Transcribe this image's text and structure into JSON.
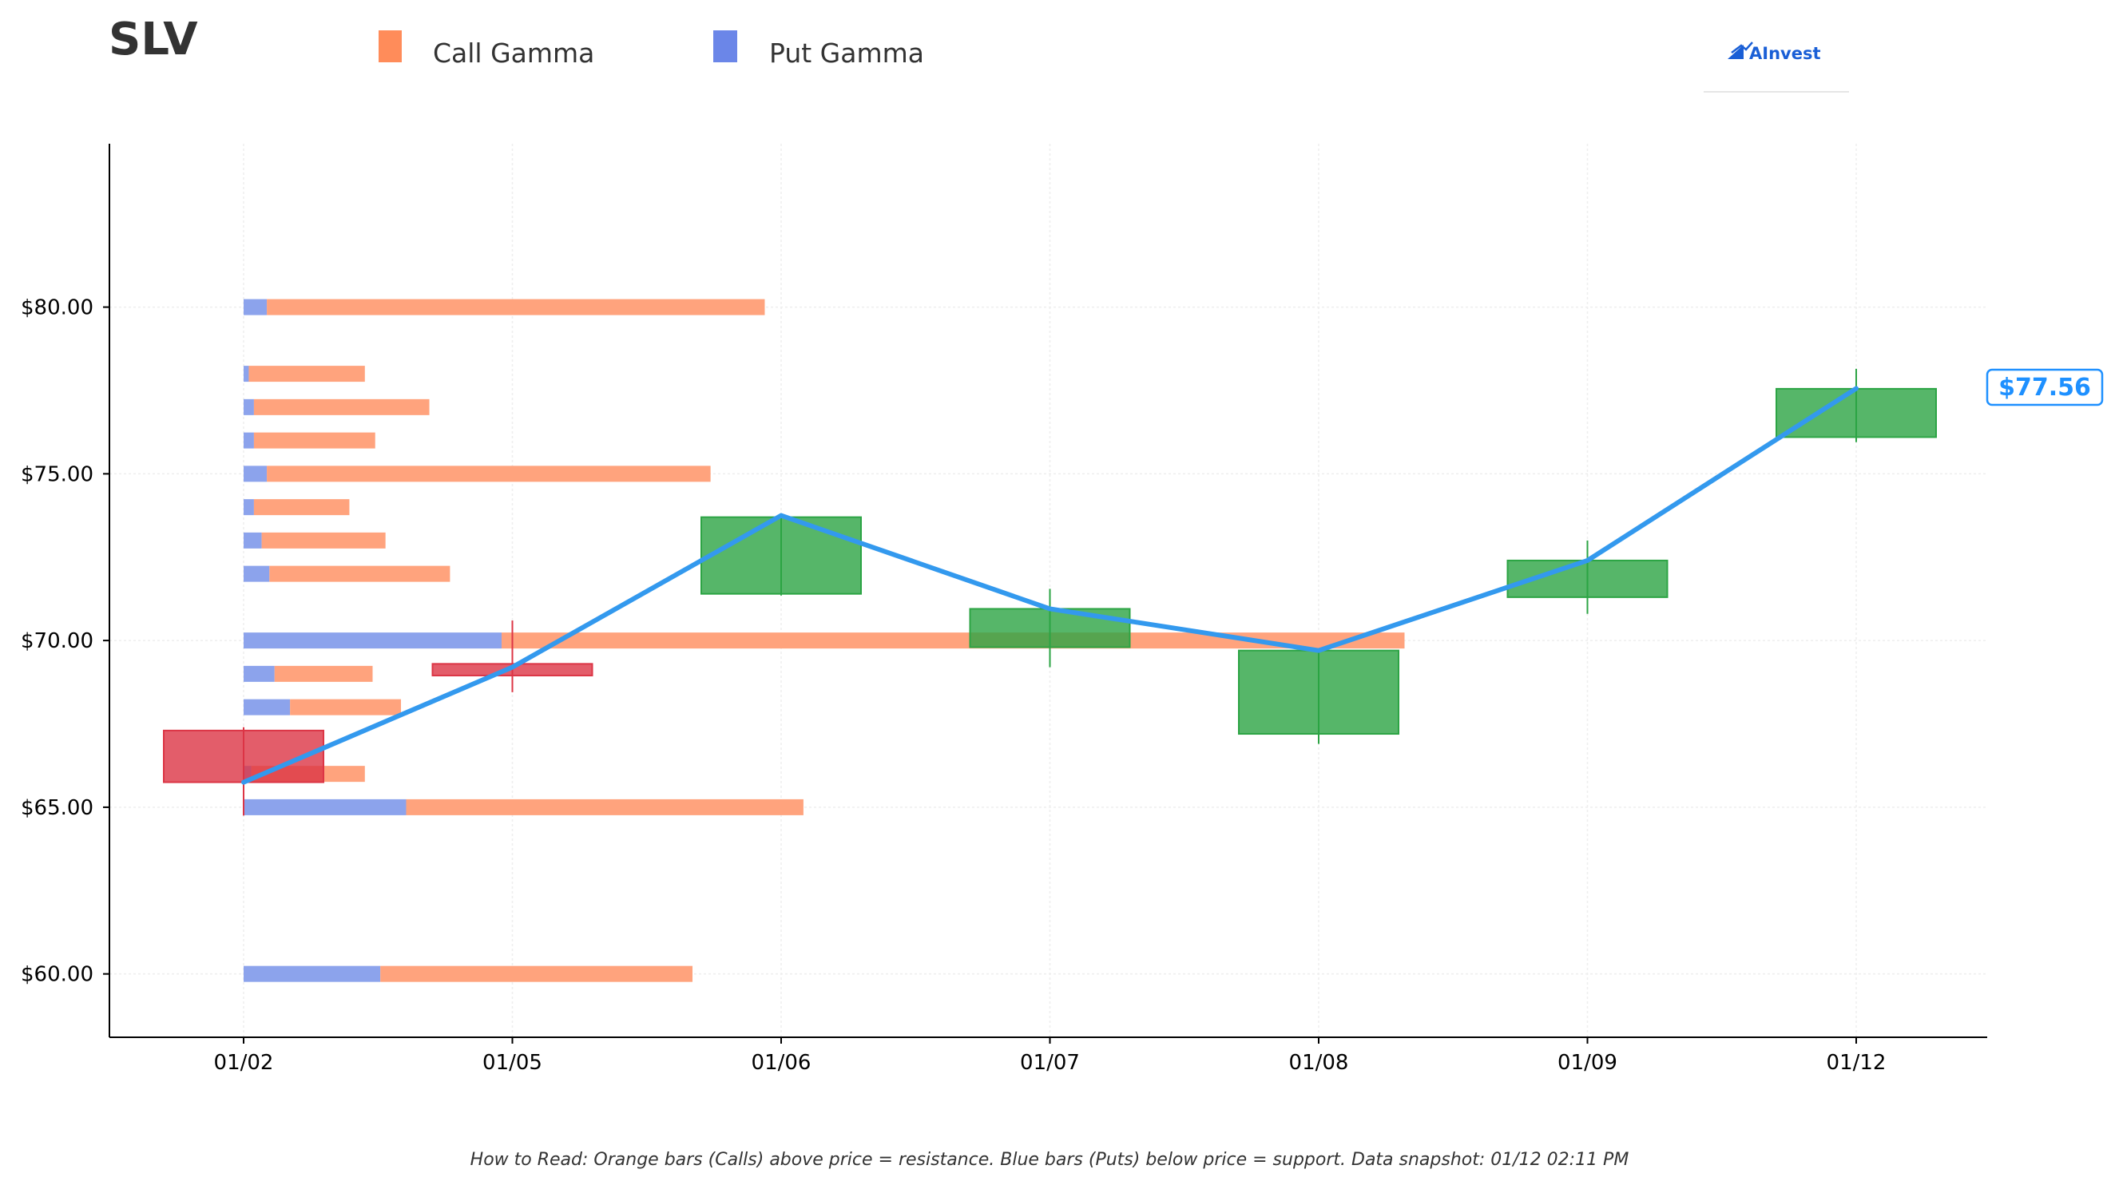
{
  "title": "SLV",
  "legend": {
    "call": {
      "label": "Call Gamma",
      "color": "#ff8c5a"
    },
    "put": {
      "label": "Put Gamma",
      "color": "#6b86e8"
    }
  },
  "logo": {
    "text": "AInvest"
  },
  "footnote": "How to Read: Orange bars (Calls) above price = resistance. Blue bars (Puts) below price = support. Data snapshot: 01/12 02:11 PM",
  "current_price_label": "$77.56",
  "colors": {
    "up": "#2ca444",
    "down": "#dc3545",
    "line": "#3399ee",
    "call": "#ffa37d",
    "put": "#8ca3ec",
    "grid": "#eeeeee"
  },
  "chart_data": {
    "type": "candlestick",
    "x_labels": [
      "01/02",
      "01/05",
      "01/06",
      "01/07",
      "01/08",
      "01/09",
      "01/12"
    ],
    "y_ticks": [
      60,
      65,
      70,
      75,
      80
    ],
    "y_tick_labels": [
      "$60.00",
      "$65.00",
      "$70.00",
      "$75.00",
      "$80.00"
    ],
    "ylim": [
      58.1,
      84.9
    ],
    "grid": true,
    "candles": [
      {
        "date": "01/02",
        "open": 67.3,
        "close": 65.75,
        "high": 67.4,
        "low": 64.75
      },
      {
        "date": "01/05",
        "open": 69.3,
        "close": 68.95,
        "high": 70.6,
        "low": 68.45
      },
      {
        "date": "01/06",
        "open": 71.4,
        "close": 73.7,
        "high": 73.75,
        "low": 71.35
      },
      {
        "date": "01/07",
        "open": 69.8,
        "close": 70.95,
        "high": 71.55,
        "low": 69.2
      },
      {
        "date": "01/08",
        "open": 67.2,
        "close": 69.7,
        "high": 69.7,
        "low": 66.9
      },
      {
        "date": "01/09",
        "open": 71.3,
        "close": 72.4,
        "high": 73.0,
        "low": 70.8
      },
      {
        "date": "01/12",
        "open": 76.1,
        "close": 77.55,
        "high": 78.15,
        "low": 75.95
      }
    ],
    "price_line": {
      "name": "Price",
      "values": [
        65.75,
        69.2,
        73.75,
        70.95,
        69.7,
        72.4,
        77.56
      ]
    },
    "gamma_levels": [
      {
        "strike": 80,
        "put": 0.09,
        "call": 1.93
      },
      {
        "strike": 78,
        "put": 0.02,
        "call": 0.45
      },
      {
        "strike": 77,
        "put": 0.04,
        "call": 0.68
      },
      {
        "strike": 76,
        "put": 0.04,
        "call": 0.47
      },
      {
        "strike": 75,
        "put": 0.09,
        "call": 1.72
      },
      {
        "strike": 74,
        "put": 0.04,
        "call": 0.37
      },
      {
        "strike": 73,
        "put": 0.07,
        "call": 0.48
      },
      {
        "strike": 72,
        "put": 0.1,
        "call": 0.7
      },
      {
        "strike": 70,
        "put": 1.0,
        "call": 3.5
      },
      {
        "strike": 69,
        "put": 0.12,
        "call": 0.38
      },
      {
        "strike": 68,
        "put": 0.18,
        "call": 0.43
      },
      {
        "strike": 66,
        "put": 0.03,
        "call": 0.44
      },
      {
        "strike": 65,
        "put": 0.63,
        "call": 1.54
      },
      {
        "strike": 60,
        "put": 0.53,
        "call": 1.21
      }
    ]
  }
}
